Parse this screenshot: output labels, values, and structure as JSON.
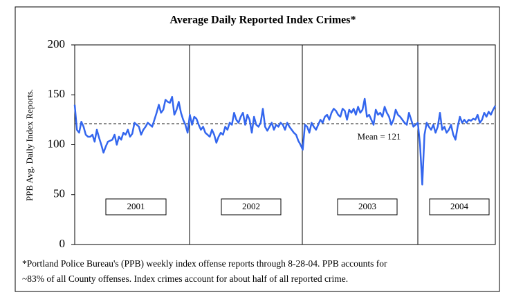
{
  "chart_data": {
    "type": "line",
    "title": "Average Daily Reported Index Crimes*",
    "y_label": "PPB Avg. Daily Index Reports.",
    "series": [
      {
        "name": "PPB weekly index offense reports",
        "color": "#3366ee",
        "values": [
          140,
          115,
          112,
          123,
          118,
          110,
          108,
          108,
          110,
          103,
          115,
          107,
          100,
          92,
          98,
          103,
          104,
          105,
          110,
          100,
          108,
          105,
          112,
          110,
          115,
          108,
          111,
          122,
          120,
          118,
          110,
          115,
          118,
          122,
          120,
          118,
          125,
          132,
          140,
          132,
          135,
          145,
          143,
          142,
          148,
          130,
          135,
          143,
          132,
          125,
          120,
          112,
          130,
          120,
          128,
          126,
          120,
          115,
          118,
          112,
          110,
          108,
          115,
          110,
          102,
          108,
          112,
          110,
          118,
          115,
          122,
          120,
          132,
          125,
          122,
          128,
          132,
          120,
          130,
          125,
          112,
          128,
          120,
          118,
          122,
          136,
          118,
          114,
          118,
          122,
          115,
          120,
          118,
          122,
          120,
          115,
          122,
          118,
          115,
          112,
          110,
          104,
          100,
          95,
          120,
          118,
          112,
          122,
          118,
          115,
          120,
          125,
          122,
          128,
          130,
          125,
          132,
          136,
          134,
          130,
          128,
          136,
          134,
          125,
          135,
          132,
          136,
          130,
          138,
          132,
          135,
          146,
          128,
          130,
          125,
          120,
          135,
          130,
          132,
          128,
          138,
          132,
          128,
          120,
          125,
          135,
          130,
          128,
          125,
          122,
          120,
          132,
          125,
          118,
          120,
          122,
          100,
          60,
          110,
          122,
          118,
          115,
          120,
          112,
          118,
          132,
          115,
          118,
          112,
          115,
          120,
          110,
          105,
          118,
          128,
          122,
          125,
          122,
          125,
          124,
          126,
          125,
          130,
          122,
          125,
          132,
          128,
          133,
          130,
          135,
          139
        ]
      }
    ],
    "mean": 121,
    "mean_label": "Mean = 121",
    "year_labels": [
      "2001",
      "2002",
      "2003",
      "2004"
    ],
    "ylim": [
      0,
      200
    ],
    "yticks": [
      0,
      50,
      100,
      150,
      200
    ],
    "note": [
      "*Portland Police Bureau's (PPB) weekly index offense reports through 8-28-04. PPB accounts for",
      "~83% of all County offenses. Index crimes account for about half of all reported crime."
    ]
  }
}
